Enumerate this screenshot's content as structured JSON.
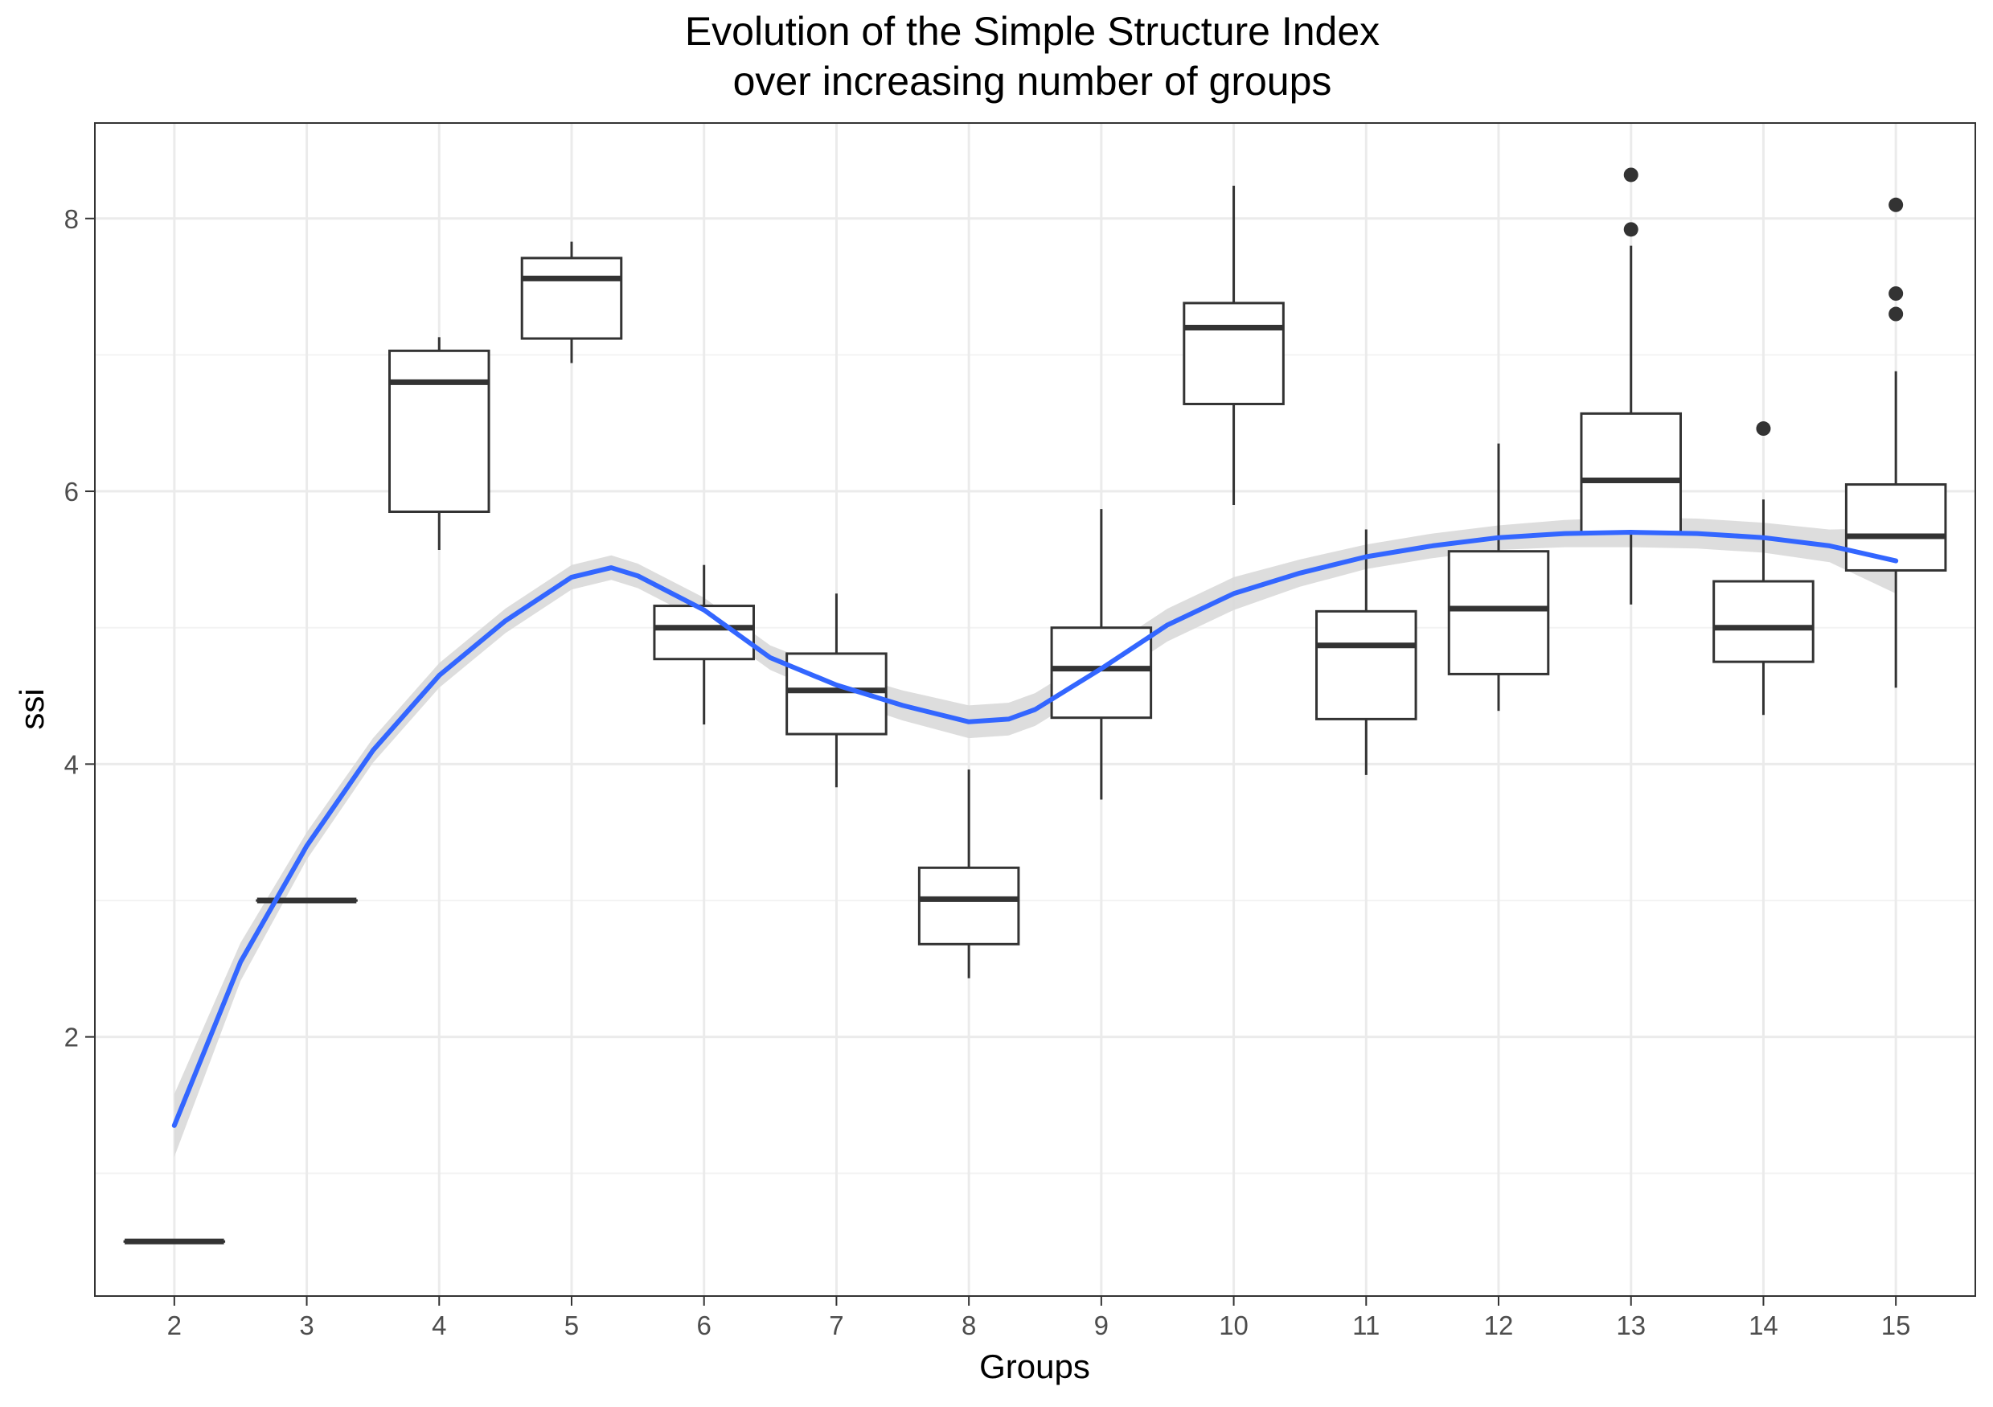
{
  "chart_data": {
    "type": "boxplot",
    "title_lines": [
      "Evolution of the Simple Structure Index",
      "over increasing number of groups"
    ],
    "xlabel": "Groups",
    "ylabel": "ssi",
    "categories": [
      "2",
      "3",
      "4",
      "5",
      "6",
      "7",
      "8",
      "9",
      "10",
      "11",
      "12",
      "13",
      "14",
      "15"
    ],
    "ylim": [
      0.1,
      8.7
    ],
    "yticks": [
      2,
      4,
      6,
      8
    ],
    "grid": true,
    "boxes": [
      {
        "group": "2",
        "min": 0.5,
        "q1": 0.5,
        "median": 0.5,
        "q3": 0.5,
        "max": 0.5,
        "outliers": []
      },
      {
        "group": "3",
        "min": 3.0,
        "q1": 3.0,
        "median": 3.0,
        "q3": 3.0,
        "max": 3.0,
        "outliers": []
      },
      {
        "group": "4",
        "min": 5.57,
        "q1": 5.85,
        "median": 6.8,
        "q3": 7.03,
        "max": 7.13,
        "outliers": []
      },
      {
        "group": "5",
        "min": 6.94,
        "q1": 7.12,
        "median": 7.56,
        "q3": 7.71,
        "max": 7.83,
        "outliers": []
      },
      {
        "group": "6",
        "min": 4.29,
        "q1": 4.77,
        "median": 5.0,
        "q3": 5.16,
        "max": 5.46,
        "outliers": []
      },
      {
        "group": "7",
        "min": 3.83,
        "q1": 4.22,
        "median": 4.54,
        "q3": 4.81,
        "max": 5.25,
        "outliers": []
      },
      {
        "group": "8",
        "min": 2.43,
        "q1": 2.68,
        "median": 3.01,
        "q3": 3.24,
        "max": 3.96,
        "outliers": []
      },
      {
        "group": "9",
        "min": 3.74,
        "q1": 4.34,
        "median": 4.7,
        "q3": 5.0,
        "max": 5.87,
        "outliers": []
      },
      {
        "group": "10",
        "min": 5.9,
        "q1": 6.64,
        "median": 7.2,
        "q3": 7.38,
        "max": 8.24,
        "outliers": []
      },
      {
        "group": "11",
        "min": 3.92,
        "q1": 4.33,
        "median": 4.87,
        "q3": 5.12,
        "max": 5.72,
        "outliers": []
      },
      {
        "group": "12",
        "min": 4.39,
        "q1": 4.66,
        "median": 5.14,
        "q3": 5.56,
        "max": 6.35,
        "outliers": []
      },
      {
        "group": "13",
        "min": 5.17,
        "q1": 5.7,
        "median": 6.08,
        "q3": 6.57,
        "max": 7.8,
        "outliers": [
          7.92,
          8.32
        ]
      },
      {
        "group": "14",
        "min": 4.36,
        "q1": 4.75,
        "median": 5.0,
        "q3": 5.34,
        "max": 5.94,
        "outliers": [
          6.46
        ]
      },
      {
        "group": "15",
        "min": 4.56,
        "q1": 5.42,
        "median": 5.67,
        "q3": 6.05,
        "max": 6.88,
        "outliers": [
          7.3,
          7.45,
          8.1
        ]
      }
    ],
    "smooth": {
      "method": "loess",
      "color": "#3366FF",
      "ribbon_color": "#D9D9D9",
      "x": [
        2,
        2.5,
        3,
        3.5,
        4,
        4.5,
        5,
        5.3,
        5.5,
        6,
        6.5,
        7,
        7.5,
        8,
        8.3,
        8.5,
        9,
        9.5,
        10,
        10.5,
        11,
        11.5,
        12,
        12.5,
        13,
        13.5,
        14,
        14.5,
        15
      ],
      "y": [
        1.35,
        2.55,
        3.4,
        4.1,
        4.65,
        5.05,
        5.37,
        5.44,
        5.38,
        5.13,
        4.78,
        4.58,
        4.43,
        4.31,
        4.33,
        4.4,
        4.7,
        5.02,
        5.25,
        5.4,
        5.52,
        5.6,
        5.66,
        5.69,
        5.7,
        5.69,
        5.66,
        5.6,
        5.49
      ],
      "band": [
        0.23,
        0.14,
        0.1,
        0.09,
        0.09,
        0.09,
        0.09,
        0.09,
        0.09,
        0.09,
        0.09,
        0.1,
        0.11,
        0.12,
        0.12,
        0.12,
        0.12,
        0.12,
        0.12,
        0.1,
        0.09,
        0.09,
        0.09,
        0.1,
        0.11,
        0.11,
        0.11,
        0.12,
        0.24
      ]
    },
    "colors": {
      "box_stroke": "#333333",
      "grid_major": "#EBEBEB",
      "grid_minor": "#F3F3F3",
      "panel_border": "#333333"
    }
  }
}
